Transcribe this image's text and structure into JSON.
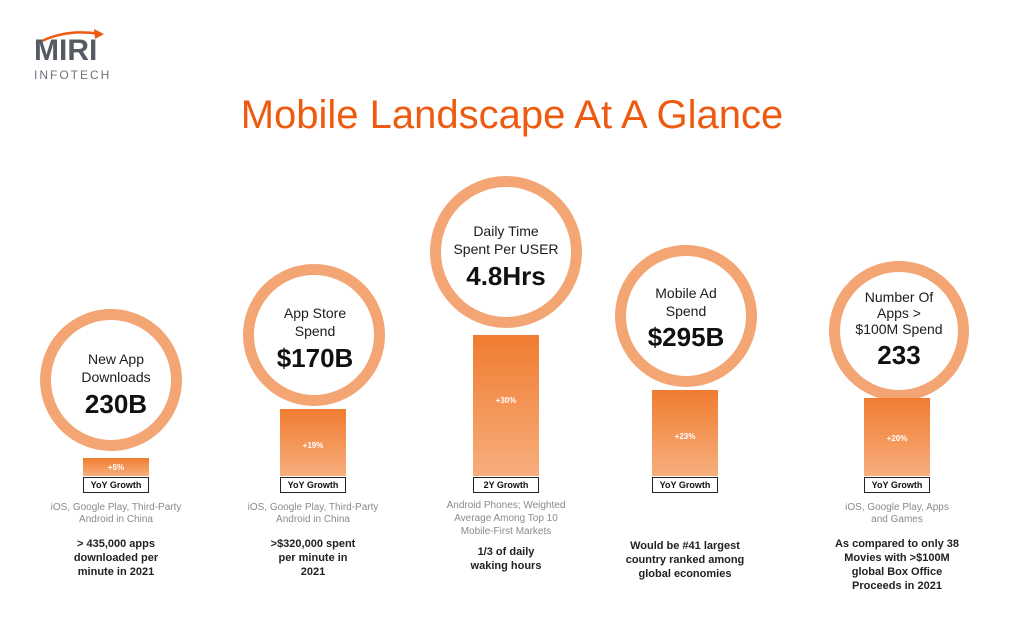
{
  "logo": {
    "name": "MIRI",
    "sub": "INFOTECH"
  },
  "title": "Mobile Landscape At A Glance",
  "stats": [
    {
      "label_lines": [
        "New App",
        "Downloads"
      ],
      "value": "230B",
      "growth_pct": "+5%",
      "growth_label": "YoY Growth",
      "source_lines": [
        "iOS, Google Play, Third-Party",
        "Android in China"
      ],
      "note_lines": [
        "> 435,000 apps",
        "downloaded per",
        "minute in 2021"
      ]
    },
    {
      "label_lines": [
        "App Store",
        "Spend"
      ],
      "value": "$170B",
      "growth_pct": "+19%",
      "growth_label": "YoY Growth",
      "source_lines": [
        "iOS, Google Play, Third-Party",
        "Android in China"
      ],
      "note_lines": [
        ">$320,000 spent",
        "per minute in",
        "2021"
      ]
    },
    {
      "label_lines": [
        "Daily Time",
        "Spent Per USER"
      ],
      "value": "4.8Hrs",
      "growth_pct": "+30%",
      "growth_label": "2Y Growth",
      "source_lines": [
        "Android Phones; Weighted",
        "Average Among Top 10",
        "Mobile-First  Markets"
      ],
      "note_lines": [
        "1/3 of daily",
        "waking hours"
      ]
    },
    {
      "label_lines": [
        "Mobile Ad",
        "Spend"
      ],
      "value": "$295B",
      "growth_pct": "+23%",
      "growth_label": "YoY Growth",
      "source_lines": [],
      "note_lines": [
        "Would be #41 largest",
        "country ranked among",
        "global economies"
      ]
    },
    {
      "label_lines": [
        "Number Of",
        "Apps >",
        "$100M Spend"
      ],
      "value": "233",
      "growth_pct": "+20%",
      "growth_label": "YoY Growth",
      "source_lines": [
        "iOS, Google Play, Apps",
        "and Games"
      ],
      "note_lines": [
        "As compared to only 38",
        "Movies with >$100M",
        "global Box Office",
        "Proceeds in 2021"
      ]
    }
  ],
  "colors": {
    "accent": "#ee5a0f",
    "ring": "#f3a574",
    "bar_top": "#f07c30",
    "bar_bottom": "#f7ae7d"
  }
}
